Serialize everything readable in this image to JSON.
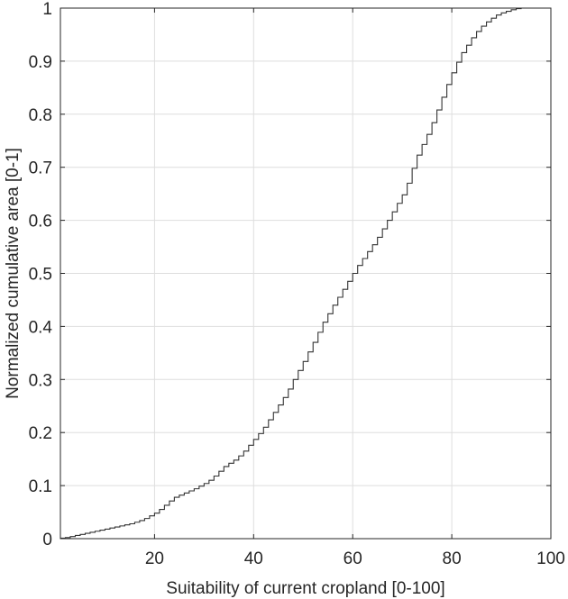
{
  "chart_data": {
    "type": "line",
    "step": true,
    "title": "",
    "xlabel": "Suitability of current cropland [0-100]",
    "ylabel": "Normalized cumulative area [0-1]",
    "xlim": [
      1,
      100
    ],
    "ylim": [
      0,
      1
    ],
    "xticks": [
      20,
      40,
      60,
      80,
      100
    ],
    "xtick_labels": [
      "20",
      "40",
      "60",
      "80",
      "100"
    ],
    "yticks": [
      0,
      0.1,
      0.2,
      0.3,
      0.4,
      0.5,
      0.6,
      0.7,
      0.8,
      0.9,
      1
    ],
    "ytick_labels": [
      "0",
      "0.1",
      "0.2",
      "0.3",
      "0.4",
      "0.5",
      "0.6",
      "0.7",
      "0.8",
      "0.9",
      "1"
    ],
    "grid": true,
    "line_color": "#333333",
    "grid_color": "#dedede",
    "series": [
      {
        "x": [
          1,
          2,
          3,
          4,
          5,
          6,
          7,
          8,
          9,
          10,
          11,
          12,
          13,
          14,
          15,
          16,
          17,
          18,
          19,
          20,
          21,
          22,
          23,
          24,
          25,
          26,
          27,
          28,
          29,
          30,
          31,
          32,
          33,
          34,
          35,
          36,
          37,
          38,
          39,
          40,
          41,
          42,
          43,
          44,
          45,
          46,
          47,
          48,
          49,
          50,
          51,
          52,
          53,
          54,
          55,
          56,
          57,
          58,
          59,
          60,
          61,
          62,
          63,
          64,
          65,
          66,
          67,
          68,
          69,
          70,
          71,
          72,
          73,
          74,
          75,
          76,
          77,
          78,
          79,
          80,
          81,
          82,
          83,
          84,
          85,
          86,
          87,
          88,
          89,
          90,
          91,
          92,
          93,
          94,
          95,
          96,
          97,
          98,
          99,
          100
        ],
        "y": [
          0.001,
          0.002,
          0.004,
          0.006,
          0.008,
          0.01,
          0.012,
          0.014,
          0.016,
          0.018,
          0.02,
          0.022,
          0.024,
          0.026,
          0.028,
          0.031,
          0.034,
          0.038,
          0.043,
          0.048,
          0.055,
          0.063,
          0.071,
          0.078,
          0.082,
          0.086,
          0.09,
          0.094,
          0.099,
          0.104,
          0.11,
          0.118,
          0.127,
          0.136,
          0.142,
          0.148,
          0.156,
          0.165,
          0.176,
          0.187,
          0.198,
          0.21,
          0.224,
          0.238,
          0.252,
          0.266,
          0.282,
          0.3,
          0.317,
          0.334,
          0.352,
          0.37,
          0.389,
          0.408,
          0.424,
          0.44,
          0.455,
          0.47,
          0.485,
          0.5,
          0.515,
          0.528,
          0.541,
          0.554,
          0.568,
          0.584,
          0.6,
          0.616,
          0.632,
          0.648,
          0.67,
          0.698,
          0.723,
          0.743,
          0.762,
          0.784,
          0.808,
          0.832,
          0.856,
          0.878,
          0.898,
          0.916,
          0.93,
          0.944,
          0.956,
          0.966,
          0.974,
          0.981,
          0.987,
          0.991,
          0.994,
          0.997,
          0.999,
          1.0,
          1.0,
          1.0,
          1.0,
          1.0,
          1.0,
          1.0
        ]
      }
    ]
  }
}
